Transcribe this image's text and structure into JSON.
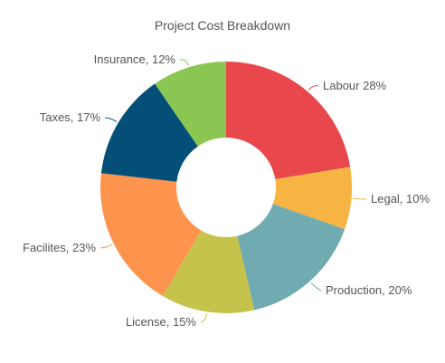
{
  "chart_data": {
    "type": "pie",
    "variant": "donut",
    "title": "Project Cost Breakdown",
    "slices": [
      {
        "name": "Labour",
        "value": 28,
        "label": "Labour 28%",
        "color": "#e8474b"
      },
      {
        "name": "Legal",
        "value": 10,
        "label": "Legal, 10%",
        "color": "#f8b443"
      },
      {
        "name": "Production",
        "value": 20,
        "label": "Production, 20%",
        "color": "#6fabb1"
      },
      {
        "name": "License",
        "value": 15,
        "label": "License, 15%",
        "color": "#c5c34b"
      },
      {
        "name": "Facilites",
        "value": 23,
        "label": "Facilites, 23%",
        "color": "#fc944d"
      },
      {
        "name": "Taxes",
        "value": 17,
        "label": "Taxes, 17%",
        "color": "#044f77"
      },
      {
        "name": "Insurance",
        "value": 12,
        "label": "Insurance, 12%",
        "color": "#8bc652"
      }
    ]
  }
}
